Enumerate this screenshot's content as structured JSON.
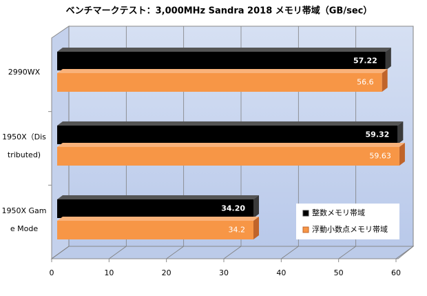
{
  "chart_data": {
    "type": "bar3d_horizontal",
    "title": "ベンチマークテスト：3,000MHz Sandra 2018 メモリ帯域（GB/sec）",
    "categories": [
      "2990WX",
      "1950X（Distributed)",
      "1950X Game Mode"
    ],
    "series": [
      {
        "name": "整数メモリ帯域",
        "color": "#000000",
        "values": [
          57.22,
          59.32,
          34.2
        ],
        "value_labels": [
          "57.22",
          "59.32",
          "34.20"
        ]
      },
      {
        "name": "浮動小数点メモリ帯域",
        "color": "#f79646",
        "values": [
          56.6,
          59.63,
          34.2
        ]
      }
    ],
    "xlim": [
      0,
      60
    ],
    "xticks": [
      0,
      10,
      20,
      30,
      40,
      50,
      60
    ],
    "grid": true
  }
}
